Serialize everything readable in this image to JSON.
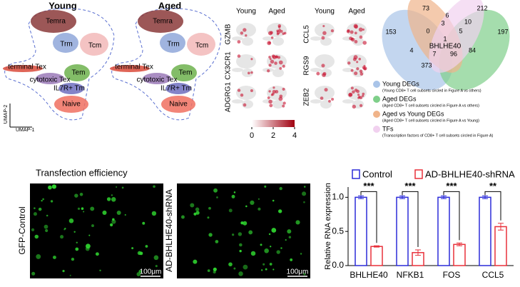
{
  "umap": {
    "panels": [
      "Young",
      "Aged"
    ],
    "clusters": [
      "Temra",
      "Trm",
      "Tcm",
      "terminal Tex",
      "cytotoxic Tex",
      "Tem",
      "IL7R+ Tm",
      "Naive"
    ],
    "y_axis": "UMAP-2",
    "x_axis": "UMAP-1"
  },
  "feature_plots": {
    "columns": [
      "Young",
      "Aged",
      "Young",
      "Aged"
    ],
    "genes_left": [
      "GZMB",
      "CX3CR1",
      "ADGRG1"
    ],
    "genes_right": [
      "CCL5",
      "RGS9",
      "ZEB2"
    ],
    "colorbar": {
      "lim": [
        0,
        4
      ],
      "ticks": [
        0,
        2,
        4
      ]
    }
  },
  "venn": {
    "center_label": "BHLHE40",
    "counts": [
      73,
      212,
      153,
      0,
      6,
      10,
      197,
      3,
      5,
      1,
      4,
      7,
      96,
      84,
      373
    ],
    "legend": [
      {
        "name": "Young DEGs",
        "description": "(Young CD8+ T cell subsets circled in Figure A vs others)",
        "color": "#a9c4e8"
      },
      {
        "name": "Aged DEGs",
        "description": "(Aged CD8+ T cell subsets circled in Figure A vs others)",
        "color": "#7fcf8a"
      },
      {
        "name": "Aged vs Young DEGs",
        "description": "(Aged CD8+ T cell subsets circled in Figure A vs Young)",
        "color": "#f0b48a"
      },
      {
        "name": "TFs",
        "description": "(Transcription factors of CD8+ T cell subsets circled in Figure A)",
        "color": "#f1d1ef"
      }
    ]
  },
  "transfection": {
    "title": "Transfection efficiency",
    "rows": [
      "GFP-Control",
      "AD-BHLHE40-shRNA"
    ],
    "scale_bar": "100μm"
  },
  "chart_data": {
    "type": "bar",
    "ylabel": "Relative RNA expression",
    "categories": [
      "BHLHE40",
      "NFKB1",
      "FOS",
      "CCL5"
    ],
    "series": [
      {
        "name": "Control",
        "color": "#2b2bd9",
        "values": [
          1,
          1,
          1,
          1
        ],
        "errors": [
          0.02,
          0.02,
          0.02,
          0.02
        ]
      },
      {
        "name": "AD-BHLHE40-shRNA",
        "color": "#e8303a",
        "values": [
          0.28,
          0.19,
          0.31,
          0.57
        ],
        "errors": [
          0.01,
          0.04,
          0.02,
          0.05
        ]
      }
    ],
    "significance": [
      "***",
      "***",
      "***",
      "**"
    ],
    "ylim": [
      0,
      1.15
    ],
    "yticks": [
      {
        "value": 0,
        "label": "0.0"
      },
      0.5,
      {
        "value": 1,
        "label": "1.0"
      }
    ],
    "legend": "top"
  }
}
